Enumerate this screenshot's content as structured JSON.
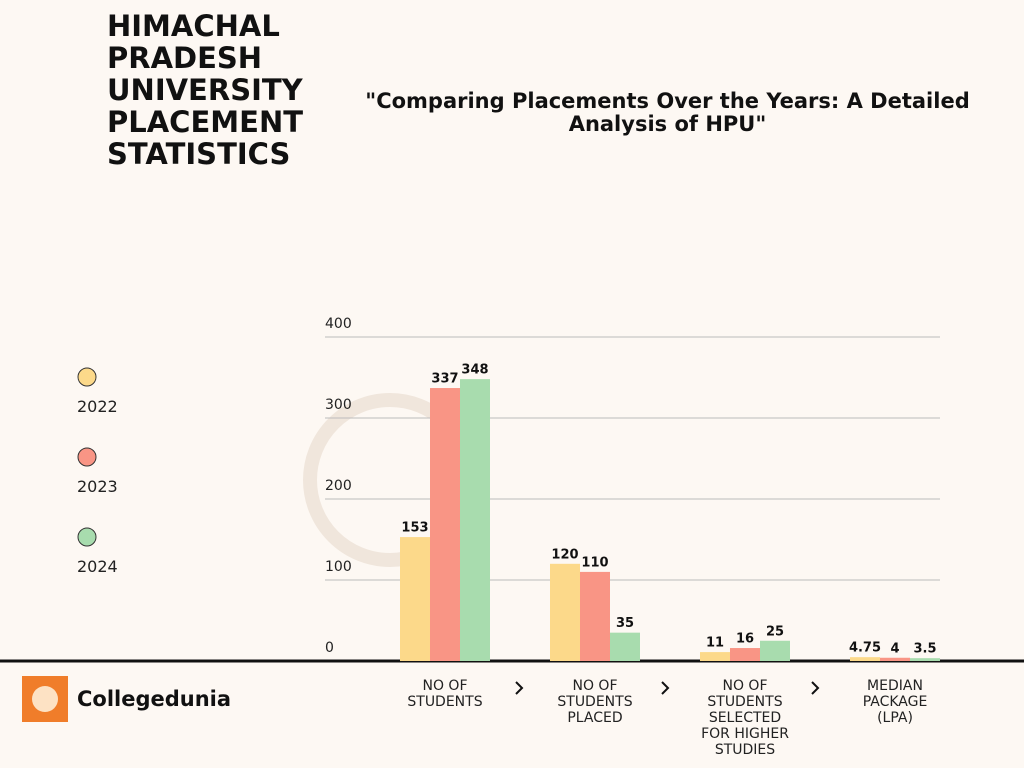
{
  "chart_data": {
    "type": "bar",
    "title": "HIMACHAL PRADESH UNIVERSITY PLACEMENT STATISTICS",
    "subtitle": "\"Comparing Placements Over the Years: A Detailed Analysis of  HPU\"",
    "categories": [
      "NO OF STUDENTS",
      "NO OF STUDENTS PLACED",
      "NO OF STUDENTS SELECTED FOR HIGHER STUDIES",
      "MEDIAN PACKAGE (LPA)"
    ],
    "series": [
      {
        "name": "2022",
        "color": "#fcd98a",
        "values": [
          153,
          120,
          11,
          4.75
        ]
      },
      {
        "name": "2023",
        "color": "#f99585",
        "values": [
          337,
          110,
          16,
          4
        ]
      },
      {
        "name": "2024",
        "color": "#a8dcae",
        "values": [
          348,
          35,
          25,
          3.5
        ]
      }
    ],
    "ylim": [
      0,
      400
    ],
    "yticks": [
      0,
      100,
      200,
      300,
      400
    ],
    "grid": true
  },
  "footer": {
    "brand": "Collegedunia"
  }
}
